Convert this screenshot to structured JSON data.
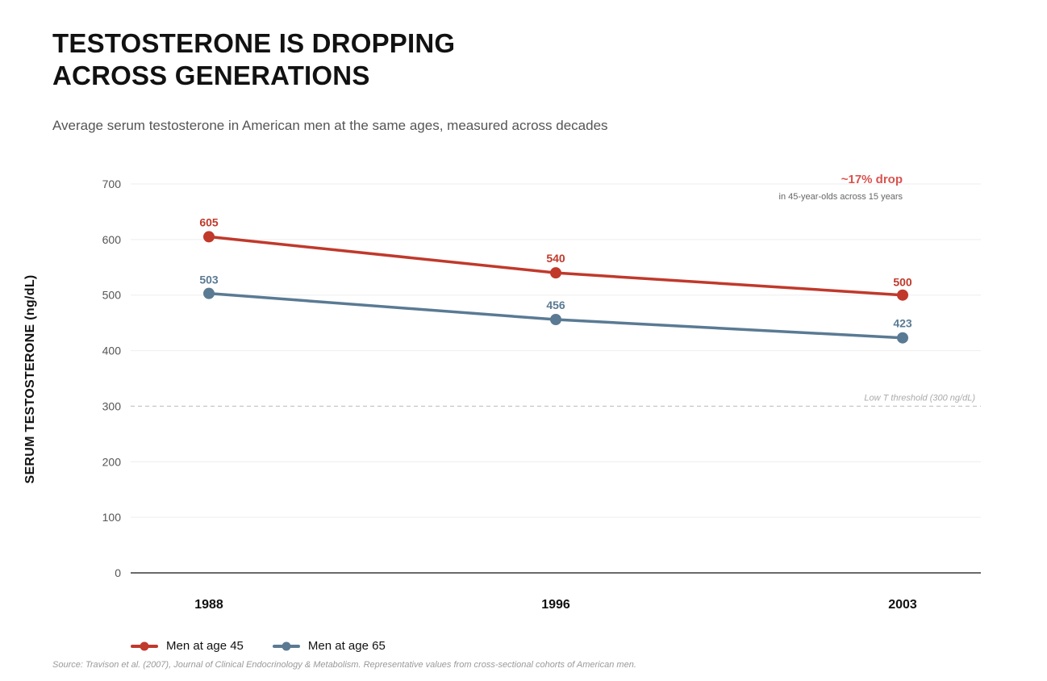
{
  "chart_data": {
    "type": "line",
    "title_lines": [
      "TESTOSTERONE IS DROPPING",
      "ACROSS GENERATIONS"
    ],
    "subtitle": "Average serum testosterone in American men at the same ages, measured across decades",
    "ylabel": "SERUM TESTOSTERONE (ng/dL)",
    "xlabel": "",
    "x": [
      "1988",
      "1996",
      "2003"
    ],
    "ylim": [
      0,
      700
    ],
    "yticks": [
      0,
      100,
      200,
      300,
      400,
      500,
      600,
      700
    ],
    "grid": true,
    "series": [
      {
        "name": "Men at age 45",
        "color": "#c0392b",
        "values": [
          605,
          540,
          500
        ]
      },
      {
        "name": "Men at age 65",
        "color": "#5a7a93",
        "values": [
          503,
          456,
          423
        ]
      }
    ],
    "threshold": {
      "value": 300,
      "label": "Low T threshold (300 ng/dL)"
    },
    "annotation": {
      "headline": "~17% drop",
      "detail": "in 45-year-olds across 15 years",
      "color": "#d9534f"
    },
    "legend_position": "bottom-left",
    "source": "Source: Travison et al. (2007), Journal of Clinical Endocrinology & Metabolism. Representative values from cross-sectional cohorts of American men."
  }
}
